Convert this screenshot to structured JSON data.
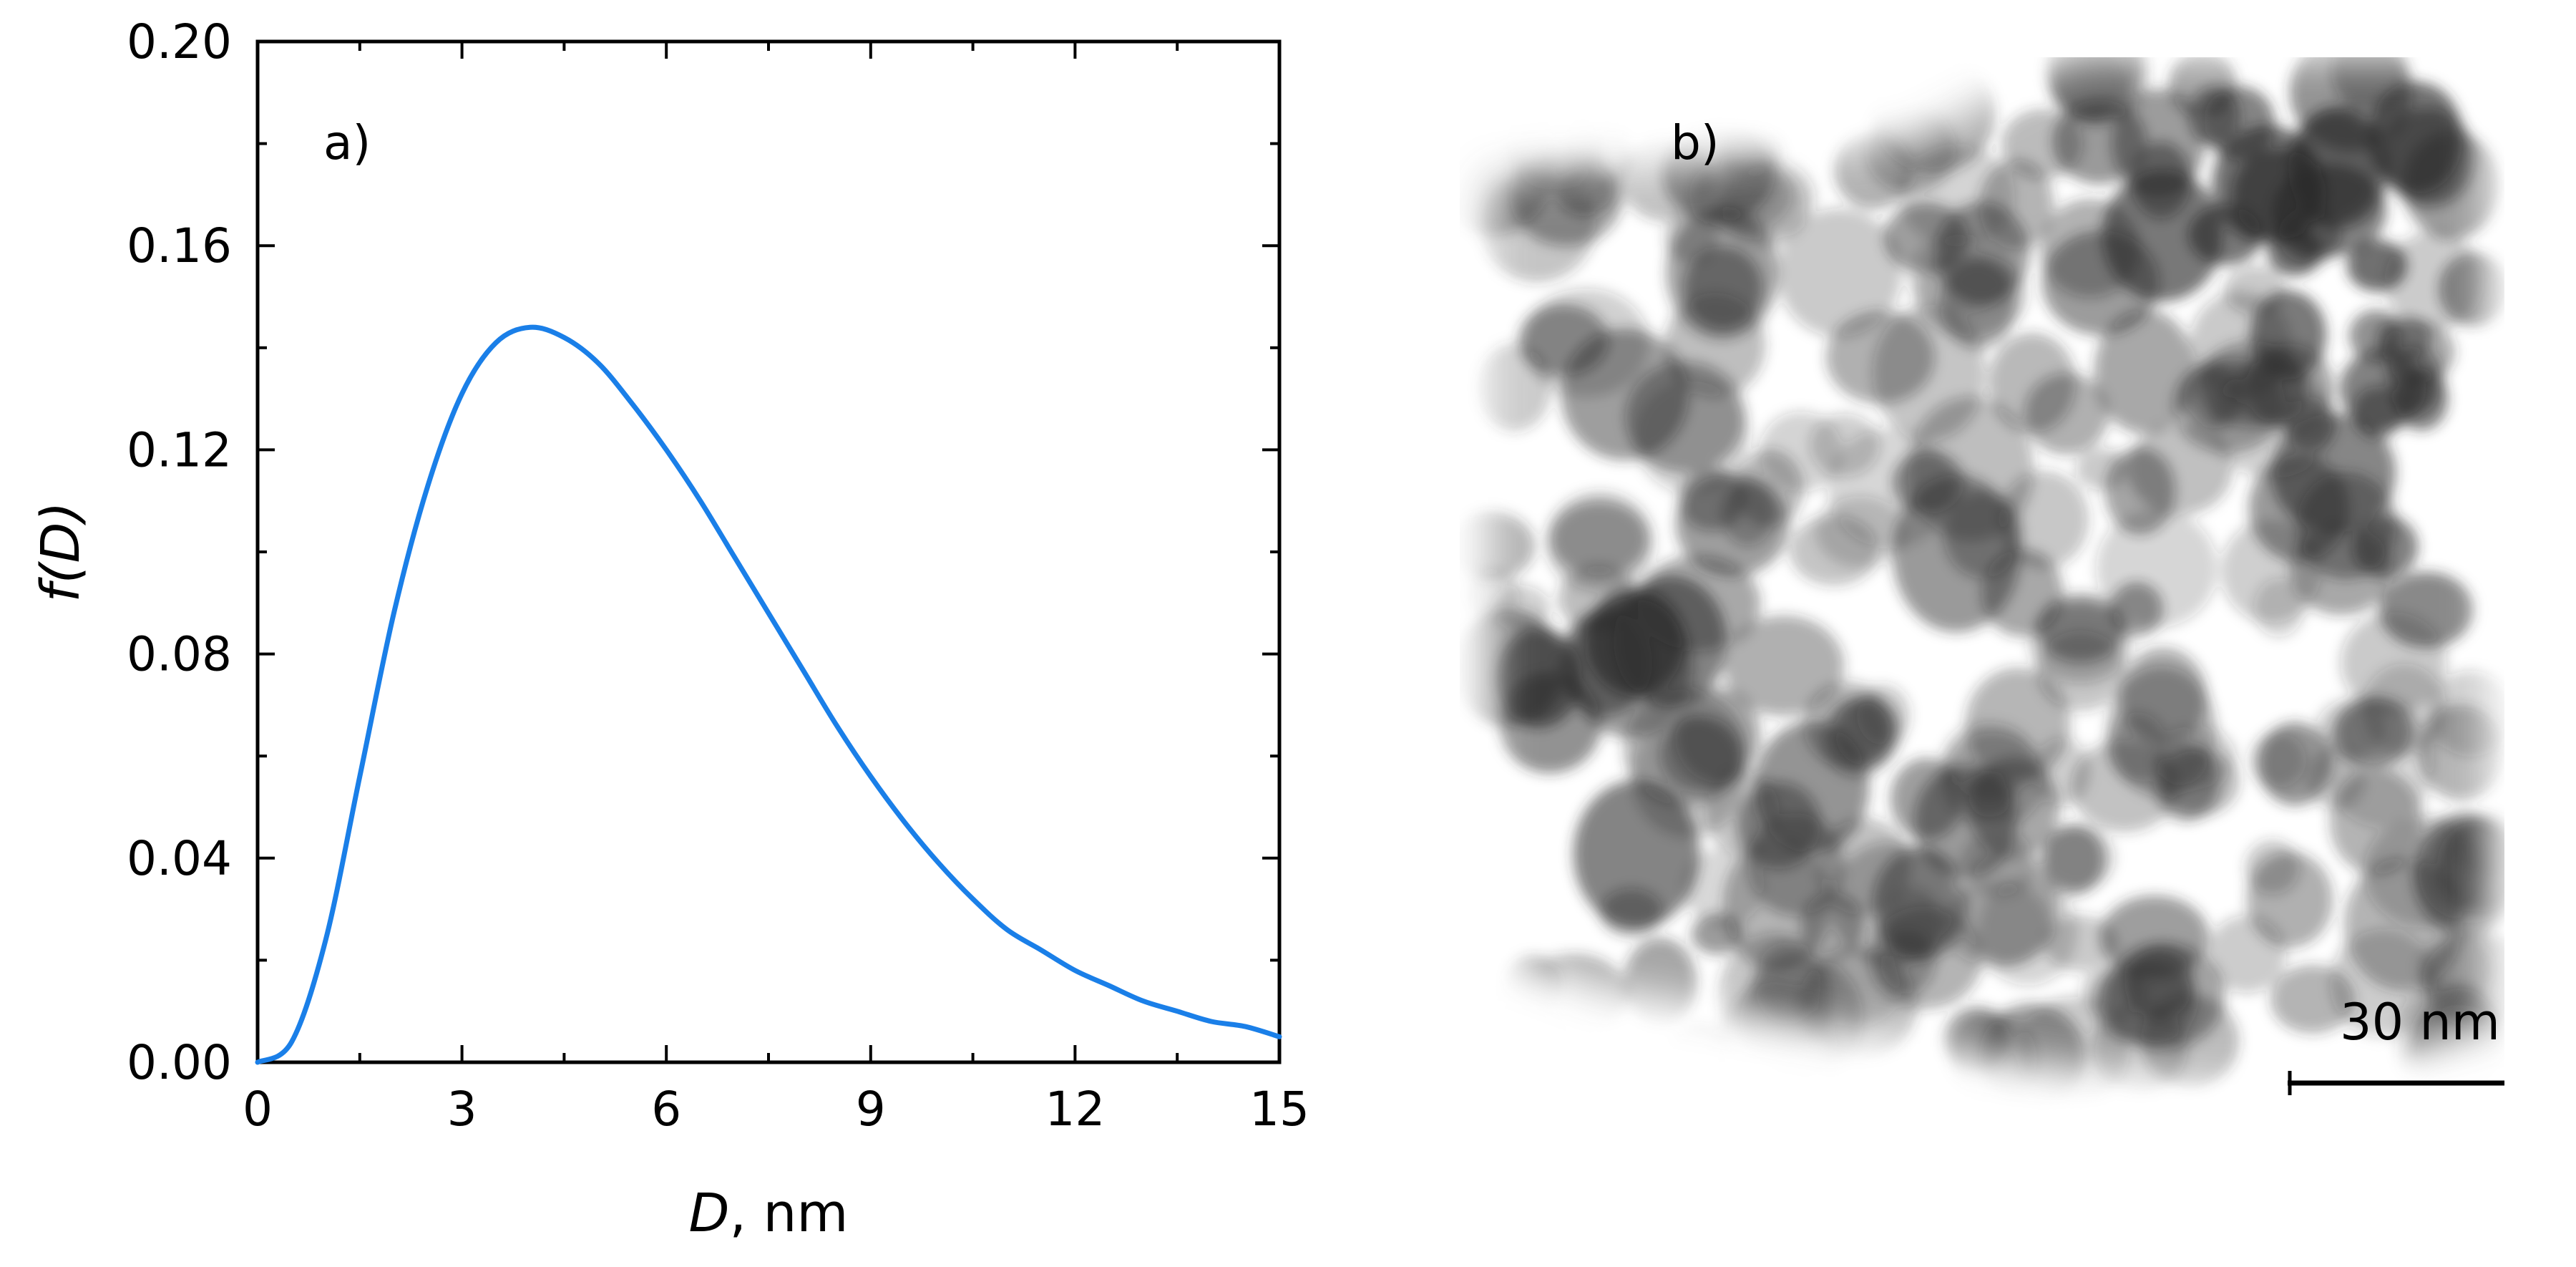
{
  "chart_data": {
    "type": "line",
    "panel_label": "a)",
    "xlabel_italic": "D",
    "xlabel_rest": ", nm",
    "ylabel_italic": "f(D)",
    "xlim": [
      0,
      15
    ],
    "ylim": [
      0,
      0.2
    ],
    "x_ticks": [
      0,
      3,
      6,
      9,
      12,
      15
    ],
    "x_tick_labels": [
      "0",
      "3",
      "6",
      "9",
      "12",
      "15"
    ],
    "y_ticks": [
      0,
      0.04,
      0.08,
      0.12,
      0.16,
      0.2
    ],
    "y_tick_labels": [
      "0.00",
      "0.04",
      "0.08",
      "0.12",
      "0.16",
      "0.20"
    ],
    "grid": false,
    "series": [
      {
        "color": "#1a7fe8",
        "x": [
          0,
          0.5,
          1,
          1.5,
          2,
          2.5,
          3,
          3.5,
          4,
          4.5,
          5,
          5.5,
          6,
          6.5,
          7,
          7.5,
          8,
          8.5,
          9,
          9.5,
          10,
          10.5,
          11,
          11.5,
          12,
          12.5,
          13,
          13.5,
          14,
          14.5,
          15
        ],
        "y": [
          0,
          0.004,
          0.024,
          0.056,
          0.088,
          0.113,
          0.131,
          0.141,
          0.144,
          0.142,
          0.137,
          0.129,
          0.12,
          0.11,
          0.099,
          0.088,
          0.077,
          0.066,
          0.056,
          0.047,
          0.039,
          0.032,
          0.026,
          0.022,
          0.018,
          0.015,
          0.012,
          0.01,
          0.008,
          0.007,
          0.005
        ]
      }
    ]
  },
  "micrograph": {
    "panel_label": "b)",
    "scale_bar_label": "30 nm"
  }
}
